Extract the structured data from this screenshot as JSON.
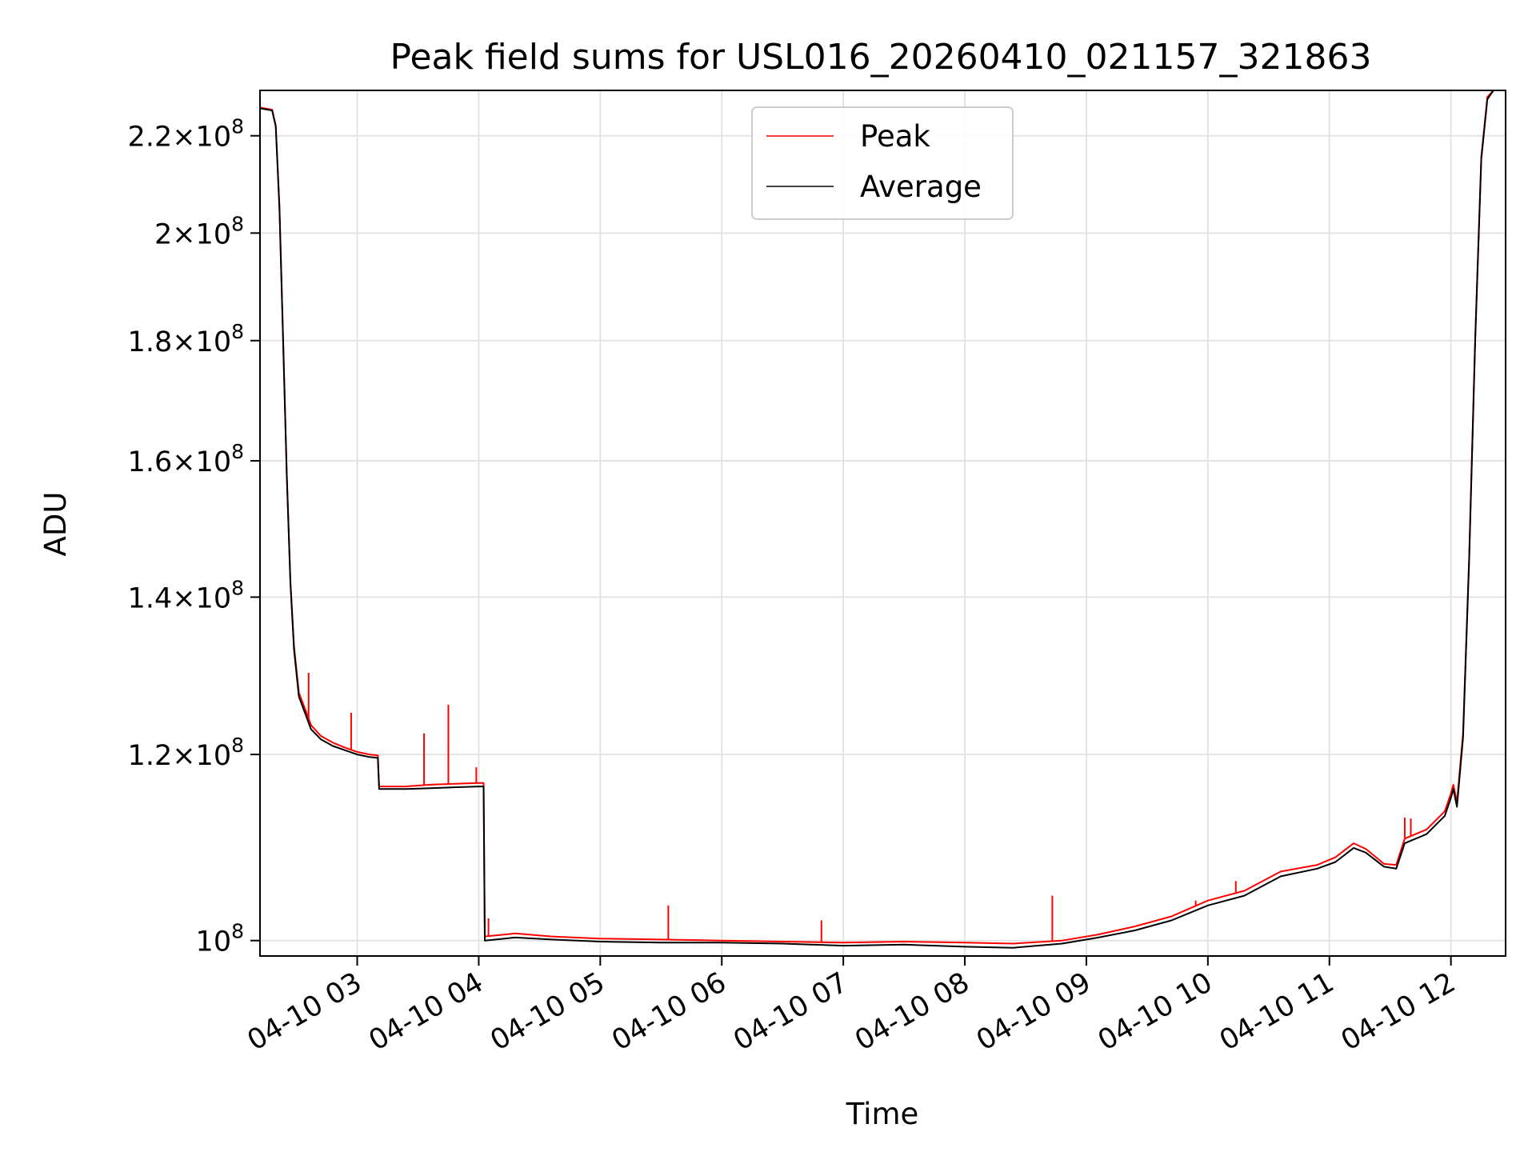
{
  "chart_data": {
    "type": "line",
    "title": "Peak field sums for USL016_20260410_021157_321863",
    "xlabel": "Time",
    "ylabel": "ADU",
    "yscale": "log",
    "grid": true,
    "legend_position": "top-center",
    "xlim": [
      2.2,
      12.45
    ],
    "ylim": [
      0.985,
      2.3
    ],
    "x_unit": "hour of day",
    "y_unit": "1e8 ADU",
    "xticks": [
      {
        "value": 3,
        "label": "04-10 03"
      },
      {
        "value": 4,
        "label": "04-10 04"
      },
      {
        "value": 5,
        "label": "04-10 05"
      },
      {
        "value": 6,
        "label": "04-10 06"
      },
      {
        "value": 7,
        "label": "04-10 07"
      },
      {
        "value": 8,
        "label": "04-10 08"
      },
      {
        "value": 9,
        "label": "04-10 09"
      },
      {
        "value": 10,
        "label": "04-10 10"
      },
      {
        "value": 11,
        "label": "04-10 11"
      },
      {
        "value": 12,
        "label": "04-10 12"
      }
    ],
    "yticks": [
      {
        "value": 1.0,
        "mantissa": "",
        "base": "10",
        "exp": "8"
      },
      {
        "value": 1.2,
        "mantissa": "1.2",
        "base": "10",
        "exp": "8"
      },
      {
        "value": 1.4,
        "mantissa": "1.4",
        "base": "10",
        "exp": "8"
      },
      {
        "value": 1.6,
        "mantissa": "1.6",
        "base": "10",
        "exp": "8"
      },
      {
        "value": 1.8,
        "mantissa": "1.8",
        "base": "10",
        "exp": "8"
      },
      {
        "value": 2.0,
        "mantissa": "2",
        "base": "10",
        "exp": "8"
      },
      {
        "value": 2.2,
        "mantissa": "2.2",
        "base": "10",
        "exp": "8"
      }
    ],
    "series": [
      {
        "name": "Average",
        "color": "#000000",
        "points": [
          [
            2.2,
            2.26
          ],
          [
            2.3,
            2.255
          ],
          [
            2.33,
            2.22
          ],
          [
            2.36,
            2.05
          ],
          [
            2.39,
            1.8
          ],
          [
            2.42,
            1.58
          ],
          [
            2.45,
            1.42
          ],
          [
            2.48,
            1.33
          ],
          [
            2.52,
            1.27
          ],
          [
            2.57,
            1.25
          ],
          [
            2.62,
            1.23
          ],
          [
            2.7,
            1.218
          ],
          [
            2.8,
            1.21
          ],
          [
            2.9,
            1.205
          ],
          [
            3.0,
            1.2
          ],
          [
            3.1,
            1.197
          ],
          [
            3.17,
            1.196
          ],
          [
            3.18,
            1.16
          ],
          [
            3.4,
            1.16
          ],
          [
            3.6,
            1.161
          ],
          [
            3.8,
            1.162
          ],
          [
            4.0,
            1.163
          ],
          [
            4.04,
            1.163
          ],
          [
            4.05,
            1.0
          ],
          [
            4.3,
            1.003
          ],
          [
            4.6,
            1.001
          ],
          [
            5.0,
            0.999
          ],
          [
            5.5,
            0.998
          ],
          [
            6.0,
            0.998
          ],
          [
            6.5,
            0.997
          ],
          [
            7.0,
            0.995
          ],
          [
            7.5,
            0.996
          ],
          [
            8.0,
            0.994
          ],
          [
            8.4,
            0.993
          ],
          [
            8.8,
            0.997
          ],
          [
            9.1,
            1.003
          ],
          [
            9.4,
            1.01
          ],
          [
            9.7,
            1.02
          ],
          [
            10.0,
            1.035
          ],
          [
            10.3,
            1.045
          ],
          [
            10.6,
            1.065
          ],
          [
            10.9,
            1.073
          ],
          [
            11.05,
            1.08
          ],
          [
            11.2,
            1.095
          ],
          [
            11.3,
            1.09
          ],
          [
            11.45,
            1.075
          ],
          [
            11.55,
            1.073
          ],
          [
            11.62,
            1.1
          ],
          [
            11.8,
            1.11
          ],
          [
            11.95,
            1.13
          ],
          [
            12.0,
            1.15
          ],
          [
            12.02,
            1.16
          ],
          [
            12.05,
            1.14
          ],
          [
            12.1,
            1.22
          ],
          [
            12.15,
            1.45
          ],
          [
            12.2,
            1.8
          ],
          [
            12.25,
            2.15
          ],
          [
            12.3,
            2.28
          ],
          [
            12.35,
            2.3
          ],
          [
            12.45,
            2.3
          ]
        ]
      },
      {
        "name": "Peak",
        "color": "#ff0000",
        "points": [
          [
            2.2,
            2.262
          ],
          [
            2.3,
            2.257
          ],
          [
            2.33,
            2.222
          ],
          [
            2.36,
            2.052
          ],
          [
            2.39,
            1.802
          ],
          [
            2.42,
            1.582
          ],
          [
            2.45,
            1.422
          ],
          [
            2.48,
            1.335
          ],
          [
            2.52,
            1.275
          ],
          [
            2.57,
            1.255
          ],
          [
            2.62,
            1.235
          ],
          [
            2.7,
            1.222
          ],
          [
            2.8,
            1.214
          ],
          [
            2.9,
            1.208
          ],
          [
            3.0,
            1.203
          ],
          [
            3.1,
            1.2
          ],
          [
            3.17,
            1.199
          ],
          [
            3.18,
            1.163
          ],
          [
            3.4,
            1.163
          ],
          [
            3.6,
            1.165
          ],
          [
            3.8,
            1.166
          ],
          [
            4.0,
            1.167
          ],
          [
            4.04,
            1.167
          ],
          [
            4.05,
            1.004
          ],
          [
            4.3,
            1.007
          ],
          [
            4.6,
            1.004
          ],
          [
            5.0,
            1.002
          ],
          [
            5.5,
            1.001
          ],
          [
            6.0,
            1.0
          ],
          [
            6.5,
            0.999
          ],
          [
            7.0,
            0.998
          ],
          [
            7.5,
            0.999
          ],
          [
            8.0,
            0.998
          ],
          [
            8.4,
            0.997
          ],
          [
            8.8,
            1.0
          ],
          [
            9.1,
            1.006
          ],
          [
            9.4,
            1.014
          ],
          [
            9.7,
            1.024
          ],
          [
            10.0,
            1.04
          ],
          [
            10.3,
            1.05
          ],
          [
            10.6,
            1.07
          ],
          [
            10.9,
            1.077
          ],
          [
            11.05,
            1.085
          ],
          [
            11.2,
            1.1
          ],
          [
            11.3,
            1.094
          ],
          [
            11.45,
            1.078
          ],
          [
            11.55,
            1.077
          ],
          [
            11.62,
            1.105
          ],
          [
            11.8,
            1.115
          ],
          [
            11.95,
            1.135
          ],
          [
            12.0,
            1.155
          ],
          [
            12.02,
            1.165
          ],
          [
            12.05,
            1.145
          ],
          [
            12.1,
            1.225
          ],
          [
            12.15,
            1.455
          ],
          [
            12.2,
            1.805
          ],
          [
            12.25,
            2.155
          ],
          [
            12.3,
            2.285
          ],
          [
            12.35,
            2.3
          ],
          [
            12.45,
            2.3
          ]
        ],
        "spikes": [
          [
            2.6,
            1.3
          ],
          [
            2.95,
            1.25
          ],
          [
            3.55,
            1.225
          ],
          [
            3.75,
            1.26
          ],
          [
            3.98,
            1.185
          ],
          [
            4.08,
            1.022
          ],
          [
            5.56,
            1.035
          ],
          [
            6.82,
            1.02
          ],
          [
            8.72,
            1.045
          ],
          [
            9.9,
            1.04
          ],
          [
            10.23,
            1.06
          ],
          [
            11.62,
            1.128
          ],
          [
            11.67,
            1.127
          ]
        ]
      }
    ]
  }
}
